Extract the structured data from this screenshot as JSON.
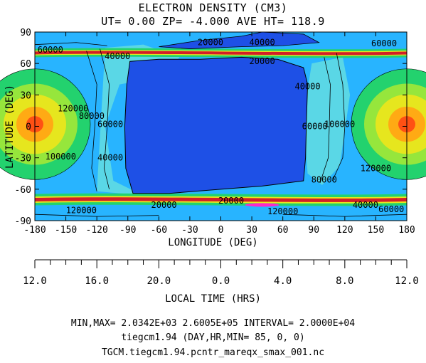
{
  "title": "ELECTRON DENSITY (CM3)",
  "subtitle": "UT= 0.00 ZP= -4.000 AVE HT= 118.9",
  "xlabel": "LONGITUDE (DEG)",
  "ylabel": "LATITUDE (DEG)",
  "x2label": "LOCAL TIME (HRS)",
  "footer": {
    "line1": "MIN,MAX= 2.0342E+03 2.6005E+05 INTERVAL= 2.0000E+04",
    "line2": "tiegcm1.94 (DAY,HR,MIN= 85, 0, 0)",
    "line3": "TGCM.tiegcm1.94.pcntr_mareqx_smax_001.nc"
  },
  "chart_data": {
    "type": "heatmap",
    "title": "ELECTRON DENSITY (CM3)",
    "subtitle": "UT= 0.00 ZP= -4.000 AVE HT= 118.9",
    "xlabel": "LONGITUDE (DEG)",
    "ylabel": "LATITUDE (DEG)",
    "x2label": "LOCAL TIME (HRS)",
    "xlim": [
      -180,
      180
    ],
    "ylim": [
      -90,
      90
    ],
    "x_ticks": [
      -180,
      -150,
      -120,
      -90,
      -60,
      -30,
      0,
      30,
      60,
      90,
      120,
      150,
      180
    ],
    "y_ticks": [
      -90,
      -60,
      -30,
      0,
      30,
      60,
      90
    ],
    "x2_ticks": [
      "12.0",
      "16.0",
      "20.0",
      "0.0",
      "4.0",
      "8.0",
      "12.0"
    ],
    "min": 2034.2,
    "max": 260050,
    "interval": 20000,
    "colors": {
      "very_low": "#1e50e6",
      "low": "#28b4ff",
      "mid_low": "#5ad7e6",
      "mid": "#23d26e",
      "mid_high": "#96e63c",
      "high": "#e6e61e",
      "higher": "#ffaa14",
      "peak": "#ff5014",
      "band_red": "#d21e28",
      "band_magenta": "#ff28c8"
    },
    "contour_labels": [
      {
        "text": "60000",
        "lon": -165,
        "lat": 73
      },
      {
        "text": "40000",
        "lon": -100,
        "lat": 67
      },
      {
        "text": "20000",
        "lon": -10,
        "lat": 80
      },
      {
        "text": "40000",
        "lon": 40,
        "lat": 80
      },
      {
        "text": "20000",
        "lon": 40,
        "lat": 62
      },
      {
        "text": "60000",
        "lon": 158,
        "lat": 79
      },
      {
        "text": "120000",
        "lon": -143,
        "lat": 17
      },
      {
        "text": "80000",
        "lon": -125,
        "lat": 10
      },
      {
        "text": "60000",
        "lon": -107,
        "lat": 2
      },
      {
        "text": "100000",
        "lon": -155,
        "lat": -29
      },
      {
        "text": "40000",
        "lon": -107,
        "lat": -30
      },
      {
        "text": "40000",
        "lon": 84,
        "lat": 38
      },
      {
        "text": "60000",
        "lon": 91,
        "lat": 0
      },
      {
        "text": "100000",
        "lon": 115,
        "lat": 2
      },
      {
        "text": "120000",
        "lon": 150,
        "lat": -40
      },
      {
        "text": "80000",
        "lon": 100,
        "lat": -51
      },
      {
        "text": "20000",
        "lon": -55,
        "lat": -75
      },
      {
        "text": "20000",
        "lon": 10,
        "lat": -71
      },
      {
        "text": "120000",
        "lon": -135,
        "lat": -80
      },
      {
        "text": "120000",
        "lon": 60,
        "lat": -81
      },
      {
        "text": "40000",
        "lon": 140,
        "lat": -75
      },
      {
        "text": "60000",
        "lon": 165,
        "lat": -79
      }
    ]
  }
}
